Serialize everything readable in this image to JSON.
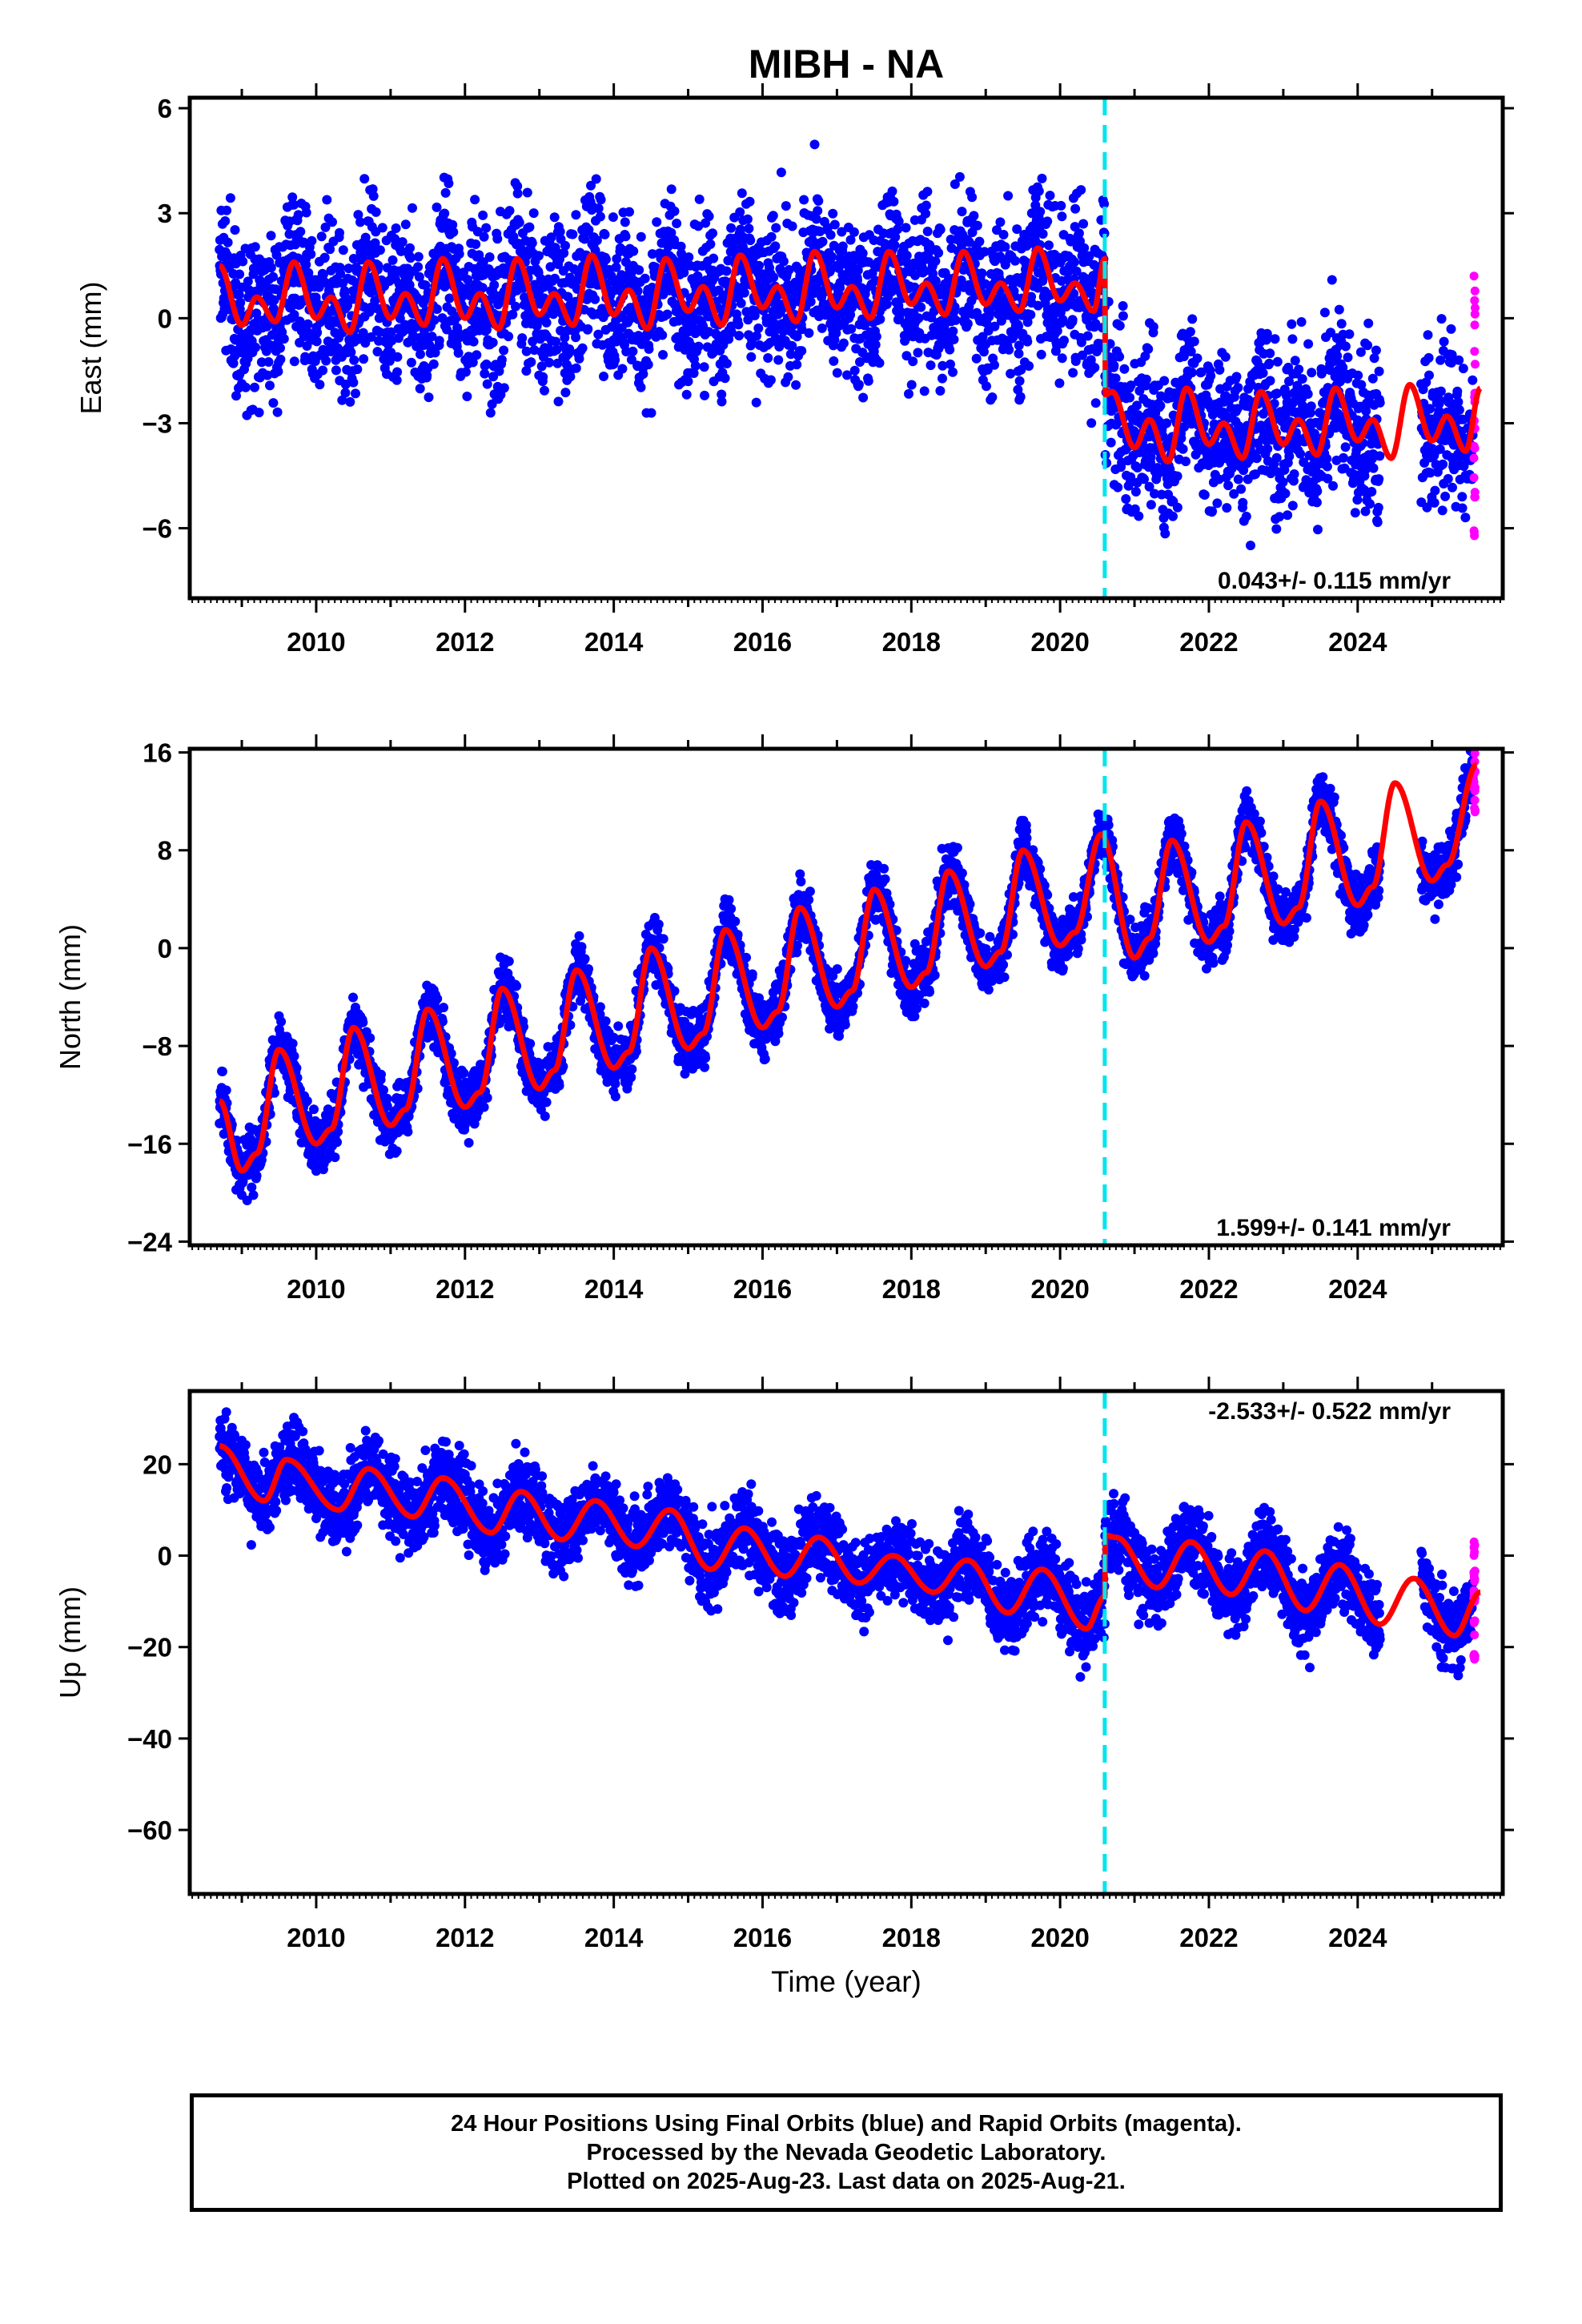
{
  "chart_data": {
    "type": "scatter",
    "title": "MIBH - NA",
    "xlabel": "Time (year)",
    "xlim": [
      2008.3,
      2025.95
    ],
    "xticks": [
      2010,
      2012,
      2014,
      2016,
      2018,
      2020,
      2022,
      2024
    ],
    "step_epoch": 2020.6,
    "colors": {
      "final": "#0000ff",
      "rapid": "#ff00ff",
      "model": "#ff0000",
      "step": "#00e5ee"
    },
    "panels": [
      {
        "ylabel": "East (mm)",
        "ylim": [
          -8,
          6.3
        ],
        "yticks": [
          6,
          3,
          0,
          -3,
          -6
        ],
        "rate_text": "0.043+/- 0.115 mm/yr",
        "rate_position": "bottom-right",
        "model_points": [
          [
            2008.7,
            1.5
          ],
          [
            2009.0,
            -0.2
          ],
          [
            2009.2,
            0.6
          ],
          [
            2009.45,
            -0.1
          ],
          [
            2009.7,
            1.6
          ],
          [
            2010.0,
            0.0
          ],
          [
            2010.2,
            0.6
          ],
          [
            2010.45,
            -0.4
          ],
          [
            2010.7,
            1.6
          ],
          [
            2011.0,
            0.0
          ],
          [
            2011.2,
            0.7
          ],
          [
            2011.45,
            -0.2
          ],
          [
            2011.7,
            1.7
          ],
          [
            2012.0,
            0.0
          ],
          [
            2012.2,
            0.7
          ],
          [
            2012.45,
            -0.3
          ],
          [
            2012.7,
            1.7
          ],
          [
            2013.0,
            0.1
          ],
          [
            2013.2,
            0.7
          ],
          [
            2013.45,
            -0.2
          ],
          [
            2013.7,
            1.8
          ],
          [
            2014.0,
            0.1
          ],
          [
            2014.2,
            0.8
          ],
          [
            2014.45,
            -0.3
          ],
          [
            2014.7,
            1.7
          ],
          [
            2015.0,
            0.2
          ],
          [
            2015.2,
            0.9
          ],
          [
            2015.45,
            -0.2
          ],
          [
            2015.7,
            1.8
          ],
          [
            2016.0,
            0.3
          ],
          [
            2016.2,
            0.9
          ],
          [
            2016.45,
            -0.1
          ],
          [
            2016.7,
            1.9
          ],
          [
            2017.0,
            0.3
          ],
          [
            2017.2,
            0.9
          ],
          [
            2017.45,
            0.0
          ],
          [
            2017.7,
            1.9
          ],
          [
            2018.0,
            0.4
          ],
          [
            2018.2,
            1.0
          ],
          [
            2018.45,
            0.1
          ],
          [
            2018.7,
            1.9
          ],
          [
            2019.0,
            0.4
          ],
          [
            2019.2,
            1.0
          ],
          [
            2019.45,
            0.2
          ],
          [
            2019.7,
            2.0
          ],
          [
            2020.0,
            0.5
          ],
          [
            2020.2,
            1.0
          ],
          [
            2020.45,
            0.2
          ],
          [
            2020.6,
            1.7
          ],
          [
            2020.6,
            -2.2
          ],
          [
            2020.7,
            -2.1
          ],
          [
            2021.0,
            -3.7
          ],
          [
            2021.2,
            -2.9
          ],
          [
            2021.45,
            -4.1
          ],
          [
            2021.7,
            -2.0
          ],
          [
            2022.0,
            -3.6
          ],
          [
            2022.2,
            -3.0
          ],
          [
            2022.45,
            -4.0
          ],
          [
            2022.7,
            -2.1
          ],
          [
            2023.0,
            -3.6
          ],
          [
            2023.2,
            -2.9
          ],
          [
            2023.45,
            -3.9
          ],
          [
            2023.7,
            -2.0
          ],
          [
            2024.0,
            -3.5
          ],
          [
            2024.2,
            -2.9
          ],
          [
            2024.45,
            -4.0
          ],
          [
            2024.7,
            -1.9
          ],
          [
            2025.0,
            -3.5
          ],
          [
            2025.2,
            -2.8
          ],
          [
            2025.45,
            -3.8
          ],
          [
            2025.65,
            -2.0
          ]
        ]
      },
      {
        "ylabel": "North (mm)",
        "ylim": [
          -24.3,
          16.3
        ],
        "yticks": [
          16,
          8,
          0,
          -8,
          -16,
          -24
        ],
        "rate_text": "1.599+/- 0.141 mm/yr",
        "rate_position": "bottom-right",
        "model_points": [
          [
            2008.7,
            -12.5
          ],
          [
            2009.0,
            -18.2
          ],
          [
            2009.2,
            -16.8
          ],
          [
            2009.5,
            -8.3
          ],
          [
            2010.0,
            -16.0
          ],
          [
            2010.2,
            -14.8
          ],
          [
            2010.5,
            -6.5
          ],
          [
            2011.0,
            -14.5
          ],
          [
            2011.2,
            -13.2
          ],
          [
            2011.5,
            -5.0
          ],
          [
            2012.0,
            -13.0
          ],
          [
            2012.2,
            -11.8
          ],
          [
            2012.5,
            -3.3
          ],
          [
            2013.0,
            -11.5
          ],
          [
            2013.2,
            -10.0
          ],
          [
            2013.5,
            -1.8
          ],
          [
            2014.0,
            -9.8
          ],
          [
            2014.2,
            -8.5
          ],
          [
            2014.5,
            0.0
          ],
          [
            2015.0,
            -8.2
          ],
          [
            2015.2,
            -7.0
          ],
          [
            2015.5,
            1.5
          ],
          [
            2016.0,
            -6.5
          ],
          [
            2016.2,
            -5.2
          ],
          [
            2016.5,
            3.3
          ],
          [
            2017.0,
            -4.8
          ],
          [
            2017.2,
            -3.5
          ],
          [
            2017.5,
            4.8
          ],
          [
            2018.0,
            -3.2
          ],
          [
            2018.2,
            -2.0
          ],
          [
            2018.5,
            6.3
          ],
          [
            2019.0,
            -1.5
          ],
          [
            2019.2,
            -0.3
          ],
          [
            2019.5,
            8.0
          ],
          [
            2020.0,
            0.2
          ],
          [
            2020.2,
            1.3
          ],
          [
            2020.55,
            9.3
          ],
          [
            2021.0,
            -0.8
          ],
          [
            2021.2,
            0.8
          ],
          [
            2021.5,
            8.8
          ],
          [
            2022.0,
            0.5
          ],
          [
            2022.2,
            1.8
          ],
          [
            2022.5,
            10.3
          ],
          [
            2023.0,
            2.0
          ],
          [
            2023.2,
            3.3
          ],
          [
            2023.5,
            12.0
          ],
          [
            2024.0,
            3.5
          ],
          [
            2024.2,
            5.0
          ],
          [
            2024.5,
            13.5
          ],
          [
            2025.0,
            5.5
          ],
          [
            2025.2,
            6.8
          ],
          [
            2025.6,
            15.0
          ]
        ]
      },
      {
        "ylabel": "Up (mm)",
        "ylim": [
          -74,
          36
        ],
        "yticks": [
          20,
          0,
          -20,
          -40,
          -60
        ],
        "rate_text": "-2.533+/- 0.522 mm/yr",
        "rate_position": "top-right",
        "model_points": [
          [
            2008.7,
            24.0
          ],
          [
            2009.3,
            12.0
          ],
          [
            2009.6,
            21.0
          ],
          [
            2010.3,
            10.0
          ],
          [
            2010.7,
            19.0
          ],
          [
            2011.3,
            8.5
          ],
          [
            2011.7,
            17.0
          ],
          [
            2012.35,
            5.0
          ],
          [
            2012.75,
            14.0
          ],
          [
            2013.3,
            3.5
          ],
          [
            2013.75,
            12.0
          ],
          [
            2014.3,
            2.0
          ],
          [
            2014.75,
            10.0
          ],
          [
            2015.3,
            -3.0
          ],
          [
            2015.75,
            6.0
          ],
          [
            2016.3,
            -4.5
          ],
          [
            2016.75,
            4.0
          ],
          [
            2017.3,
            -6.0
          ],
          [
            2017.75,
            0.0
          ],
          [
            2018.3,
            -8.0
          ],
          [
            2018.75,
            -1.0
          ],
          [
            2019.3,
            -12.5
          ],
          [
            2019.75,
            -3.0
          ],
          [
            2020.35,
            -16.0
          ],
          [
            2020.6,
            -9.0
          ],
          [
            2020.6,
            4.5
          ],
          [
            2020.75,
            4.0
          ],
          [
            2021.3,
            -7.0
          ],
          [
            2021.75,
            3.0
          ],
          [
            2022.3,
            -8.5
          ],
          [
            2022.75,
            1.0
          ],
          [
            2023.3,
            -12.0
          ],
          [
            2023.75,
            -2.0
          ],
          [
            2024.3,
            -15.0
          ],
          [
            2024.75,
            -5.0
          ],
          [
            2025.3,
            -17.5
          ],
          [
            2025.65,
            -8.0
          ]
        ]
      }
    ]
  },
  "footer": {
    "line1": "24 Hour Positions Using Final Orbits (blue) and Rapid Orbits (magenta).",
    "line2": "Processed by the Nevada Geodetic Laboratory.",
    "line3": "Plotted on 2025-Aug-23. Last data on 2025-Aug-21."
  }
}
